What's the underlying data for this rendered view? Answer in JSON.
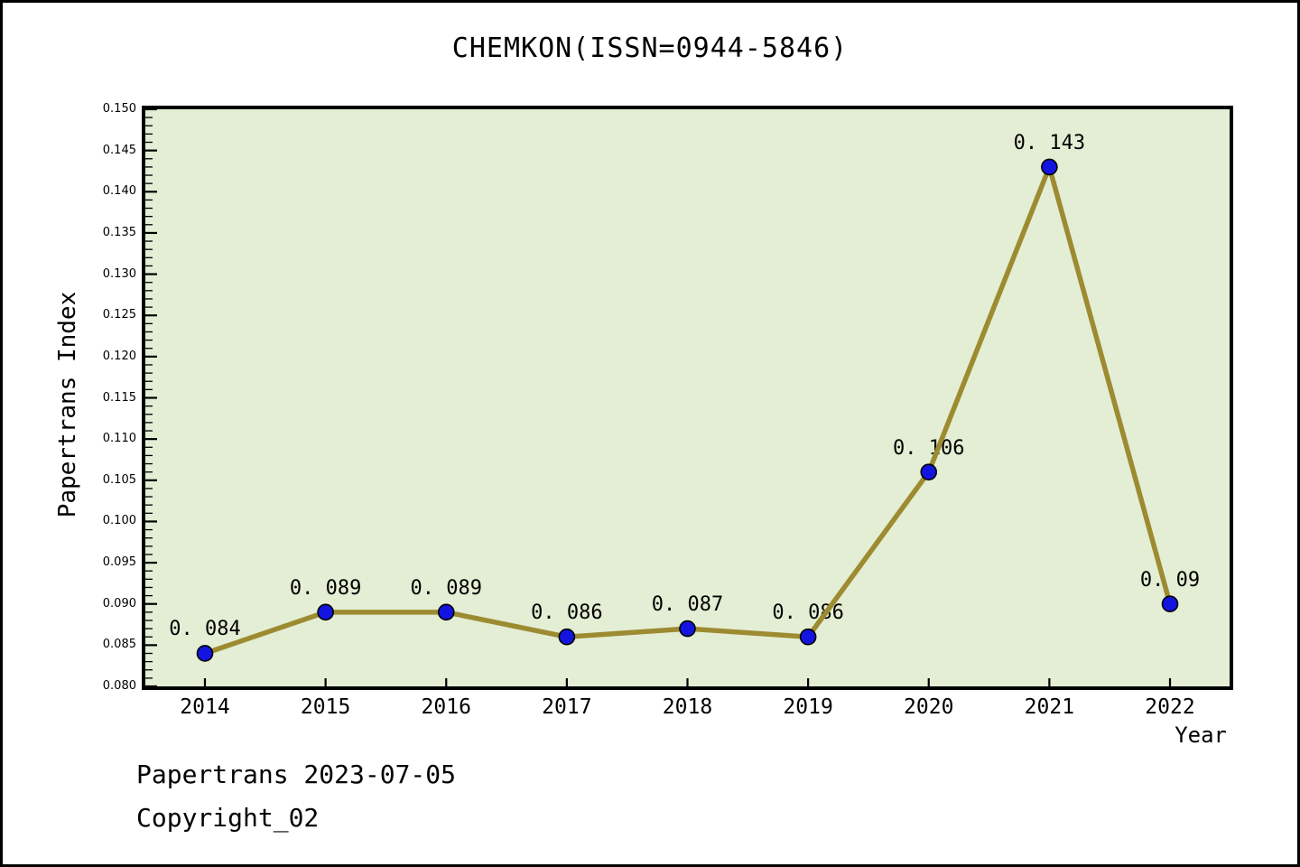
{
  "chart_data": {
    "type": "line",
    "title": "CHEMKON(ISSN=0944-5846)",
    "xlabel": "Year",
    "ylabel": "Papertrans Index",
    "categories": [
      "2014",
      "2015",
      "2016",
      "2017",
      "2018",
      "2019",
      "2020",
      "2021",
      "2022"
    ],
    "series": [
      {
        "name": "Papertrans Index",
        "values": [
          0.084,
          0.089,
          0.089,
          0.086,
          0.087,
          0.086,
          0.106,
          0.143,
          0.09
        ],
        "point_labels": [
          "0. 084",
          "0. 089",
          "0. 089",
          "0. 086",
          "0. 087",
          "0. 086",
          "0. 106",
          "0. 143",
          "0. 09"
        ]
      }
    ],
    "ylim": [
      0.08,
      0.15
    ],
    "y_tick_labels": [
      "0.080",
      "0.085",
      "0.090",
      "0.095",
      "0.100",
      "0.105",
      "0.110",
      "0.115",
      "0.120",
      "0.125",
      "0.130",
      "0.135",
      "0.140",
      "0.145",
      "0.150"
    ],
    "y_minor_step": 0.001,
    "grid": false,
    "legend_position": "none",
    "colors": {
      "plot_background": "#e3eed4",
      "line": "#9d8b31",
      "marker_fill": "#1414e0",
      "marker_edge": "#000000",
      "frame": "#000000",
      "text": "#000000",
      "page_background": "#ffffff"
    }
  },
  "footer": {
    "line1": "Papertrans 2023-07-05",
    "line2": "Copyright_02"
  }
}
